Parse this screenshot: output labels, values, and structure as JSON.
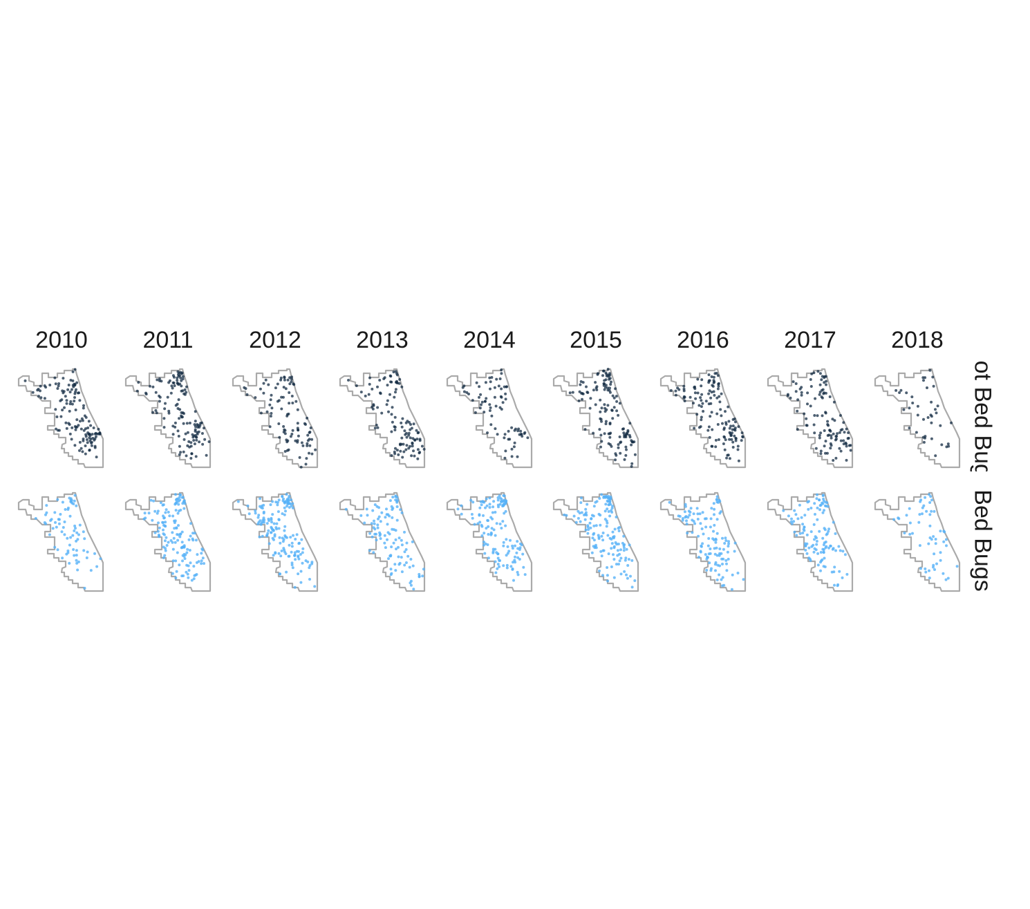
{
  "facets": {
    "years": [
      "2010",
      "2011",
      "2012",
      "2013",
      "2014",
      "2015",
      "2016",
      "2017",
      "2018"
    ],
    "rows": [
      {
        "label": "Not Bed Bugs",
        "color": "#132b43",
        "point_opacity": 0.75,
        "density": [
          130,
          130,
          95,
          110,
          75,
          130,
          130,
          110,
          40
        ]
      },
      {
        "label": "Bed Bugs",
        "color": "#56b1f7",
        "point_opacity": 0.8,
        "density": [
          75,
          150,
          160,
          105,
          135,
          150,
          120,
          120,
          55
        ]
      }
    ]
  },
  "style": {
    "boundary_color": "#aaaaaa",
    "background": "#ffffff",
    "label_color": "#1a1a1a"
  }
}
